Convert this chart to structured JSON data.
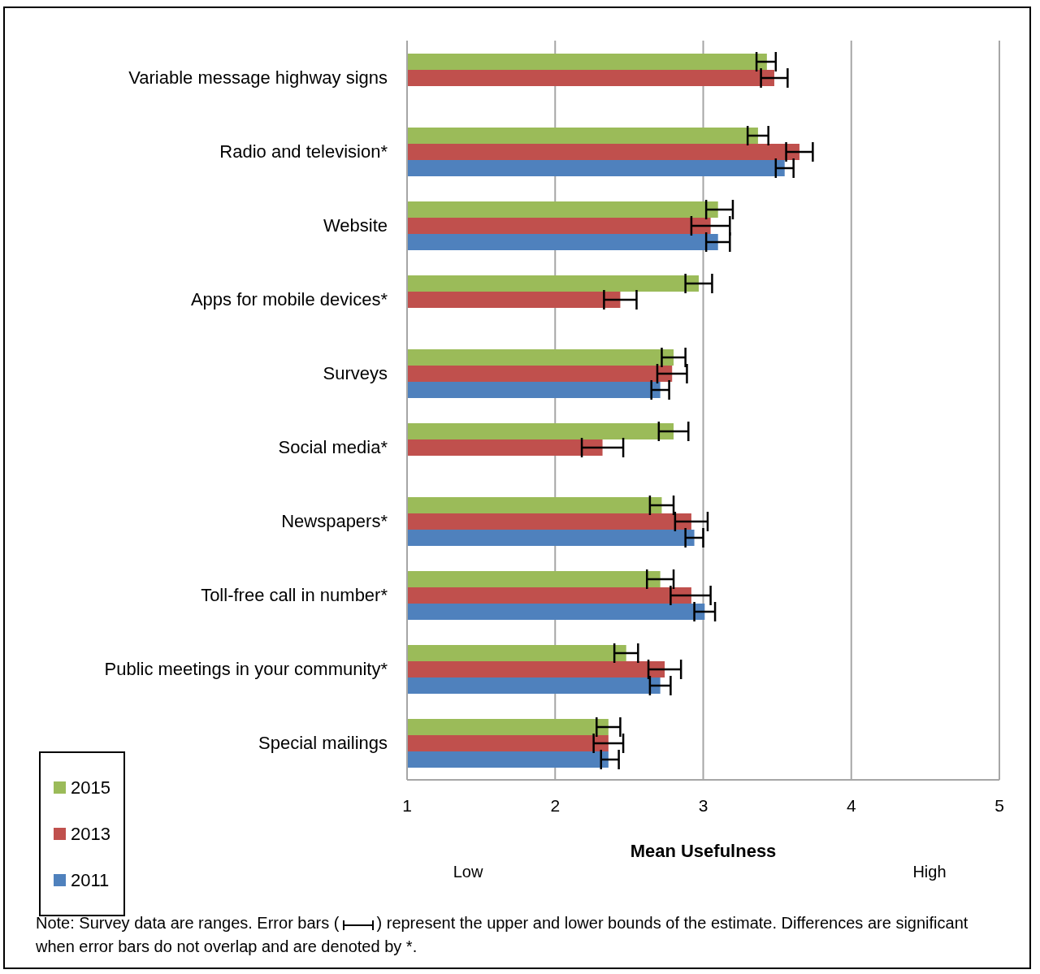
{
  "chart_data": {
    "type": "bar",
    "orientation": "horizontal",
    "xlabel": "Mean Usefulness",
    "categories": [
      "Variable message highway signs",
      "Radio and television*",
      "Website",
      "Apps for mobile devices*",
      "Surveys",
      "Social media*",
      "Newspapers*",
      "Toll-free call in number*",
      "Public meetings in your community*",
      "Special mailings"
    ],
    "series": [
      {
        "name": "2015",
        "color": "#9bbb59",
        "values": [
          3.43,
          3.37,
          3.1,
          2.97,
          2.8,
          2.8,
          2.72,
          2.71,
          2.48,
          2.36
        ],
        "errors": [
          [
            3.36,
            3.49
          ],
          [
            3.3,
            3.44
          ],
          [
            3.02,
            3.2
          ],
          [
            2.88,
            3.06
          ],
          [
            2.72,
            2.88
          ],
          [
            2.7,
            2.9
          ],
          [
            2.64,
            2.8
          ],
          [
            2.62,
            2.8
          ],
          [
            2.4,
            2.56
          ],
          [
            2.28,
            2.44
          ]
        ]
      },
      {
        "name": "2013",
        "color": "#c0504d",
        "values": [
          3.48,
          3.65,
          3.05,
          2.44,
          2.79,
          2.32,
          2.92,
          2.92,
          2.74,
          2.36
        ],
        "errors": [
          [
            3.39,
            3.57
          ],
          [
            3.56,
            3.74
          ],
          [
            2.92,
            3.18
          ],
          [
            2.33,
            2.55
          ],
          [
            2.69,
            2.89
          ],
          [
            2.18,
            2.46
          ],
          [
            2.81,
            3.03
          ],
          [
            2.78,
            3.05
          ],
          [
            2.63,
            2.85
          ],
          [
            2.26,
            2.46
          ]
        ]
      },
      {
        "name": "2011",
        "color": "#4f81bd",
        "values": [
          null,
          3.55,
          3.1,
          null,
          2.71,
          null,
          2.94,
          3.01,
          2.71,
          2.36
        ],
        "errors": [
          null,
          [
            3.49,
            3.61
          ],
          [
            3.02,
            3.18
          ],
          null,
          [
            2.65,
            2.77
          ],
          null,
          [
            2.88,
            3.0
          ],
          [
            2.94,
            3.08
          ],
          [
            2.64,
            2.78
          ],
          [
            2.31,
            2.43
          ]
        ]
      }
    ],
    "xlim": [
      1,
      5
    ],
    "xticks": [
      1,
      2,
      3,
      4,
      5
    ],
    "grid": "x",
    "legend": "bottom left",
    "annotations": [
      "Low",
      "High",
      "Note:  Survey data are ranges.  Error bars (",
      ") represent the upper and lower bounds of the estimate. Differences are significant when error bars do not overlap and are denoted by *."
    ]
  }
}
